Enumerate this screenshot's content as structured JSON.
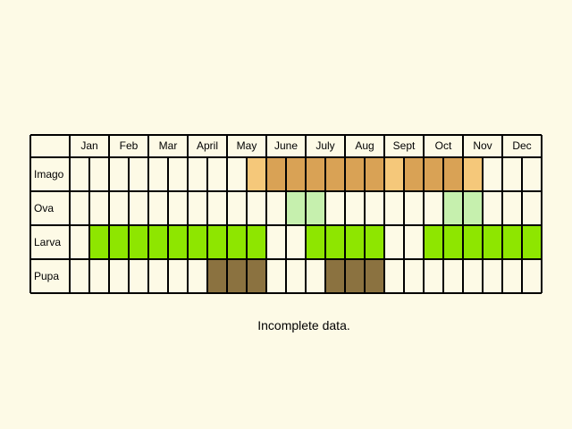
{
  "months": [
    "Jan",
    "Feb",
    "Mar",
    "April",
    "May",
    "June",
    "July",
    "Aug",
    "Sept",
    "Oct",
    "Nov",
    "Dec"
  ],
  "note": "Incomplete data.",
  "colors": {
    "background": "#fdfae6",
    "grid": "#000000",
    "imago_light": "#f5c87a",
    "imago_dark": "#d9a255",
    "ova": "#c6f0ae",
    "larva": "#8ee600",
    "pupa": "#8b7240"
  },
  "rows": [
    {
      "label": "Imago",
      "spans": [
        {
          "from": 9,
          "to": 10,
          "color": "imago_light"
        },
        {
          "from": 10,
          "to": 16,
          "color": "imago_dark"
        },
        {
          "from": 16,
          "to": 17,
          "color": "imago_light"
        },
        {
          "from": 17,
          "to": 20,
          "color": "imago_dark"
        },
        {
          "from": 20,
          "to": 21,
          "color": "imago_light"
        }
      ]
    },
    {
      "label": "Ova",
      "spans": [
        {
          "from": 11,
          "to": 13,
          "color": "ova"
        },
        {
          "from": 19,
          "to": 21,
          "color": "ova"
        }
      ]
    },
    {
      "label": "Larva",
      "spans": [
        {
          "from": 1,
          "to": 10,
          "color": "larva"
        },
        {
          "from": 12,
          "to": 16,
          "color": "larva"
        },
        {
          "from": 18,
          "to": 24,
          "color": "larva"
        }
      ]
    },
    {
      "label": "Pupa",
      "spans": [
        {
          "from": 7,
          "to": 10,
          "color": "pupa"
        },
        {
          "from": 13,
          "to": 16,
          "color": "pupa"
        }
      ]
    }
  ]
}
